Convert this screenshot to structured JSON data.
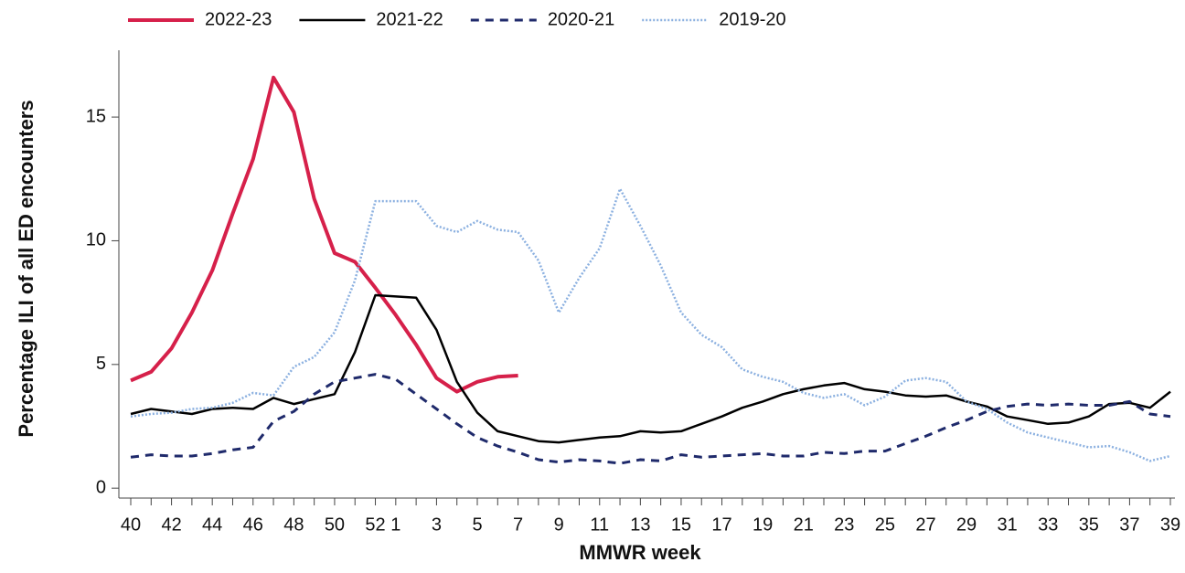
{
  "chart_data": {
    "type": "line",
    "x_label": "MMWR week",
    "y_label": "Percentage ILI of all ED encounters",
    "categories": [
      "40",
      null,
      "42",
      null,
      "44",
      null,
      "46",
      null,
      "48",
      null,
      "50",
      null,
      "52",
      "1",
      null,
      "3",
      null,
      "5",
      null,
      "7",
      null,
      "9",
      null,
      "11",
      null,
      "13",
      null,
      "15",
      null,
      "17",
      null,
      "19",
      null,
      "21",
      null,
      "23",
      null,
      "25",
      null,
      "27",
      null,
      "29",
      null,
      "31",
      null,
      "33",
      null,
      "35",
      null,
      "37",
      null,
      "39"
    ],
    "ylim": [
      -0.4,
      17.7
    ],
    "yticks": [
      0,
      5,
      10,
      15
    ],
    "legend": "top",
    "series": [
      {
        "name": "2022-23",
        "color": "#d6204a",
        "width": 4,
        "dash": "solid",
        "values": [
          4.35,
          4.7,
          5.65,
          7.1,
          8.8,
          11.1,
          13.3,
          16.6,
          15.2,
          11.7,
          9.5,
          9.15,
          8.1,
          7.0,
          5.8,
          4.45,
          3.9,
          4.3,
          4.5,
          4.55,
          null,
          null,
          null,
          null,
          null,
          null,
          null,
          null,
          null,
          null,
          null,
          null,
          null,
          null,
          null,
          null,
          null,
          null,
          null,
          null,
          null,
          null,
          null,
          null,
          null,
          null,
          null,
          null,
          null,
          null,
          null,
          null
        ]
      },
      {
        "name": "2021-22",
        "color": "#000000",
        "width": 2.5,
        "dash": "solid",
        "values": [
          3.0,
          3.2,
          3.1,
          3.0,
          3.2,
          3.25,
          3.2,
          3.65,
          3.4,
          3.6,
          3.8,
          5.5,
          7.8,
          7.75,
          7.7,
          6.4,
          4.3,
          3.05,
          2.3,
          2.1,
          1.9,
          1.85,
          1.95,
          2.05,
          2.1,
          2.3,
          2.25,
          2.3,
          2.6,
          2.9,
          3.25,
          3.5,
          3.8,
          4.0,
          4.15,
          4.25,
          4.0,
          3.9,
          3.75,
          3.7,
          3.75,
          3.5,
          3.3,
          2.9,
          2.75,
          2.6,
          2.65,
          2.9,
          3.4,
          3.45,
          3.25,
          3.9
        ]
      },
      {
        "name": "2020-21",
        "color": "#1f2a6b",
        "width": 3,
        "dash": "dashed",
        "values": [
          1.25,
          1.35,
          1.3,
          1.3,
          1.4,
          1.55,
          1.65,
          2.7,
          3.1,
          3.8,
          4.3,
          4.45,
          4.6,
          4.4,
          3.8,
          3.2,
          2.6,
          2.05,
          1.7,
          1.45,
          1.15,
          1.05,
          1.15,
          1.1,
          1.0,
          1.15,
          1.1,
          1.35,
          1.25,
          1.3,
          1.35,
          1.4,
          1.3,
          1.3,
          1.45,
          1.4,
          1.5,
          1.5,
          1.8,
          2.1,
          2.45,
          2.75,
          3.1,
          3.3,
          3.4,
          3.35,
          3.4,
          3.35,
          3.35,
          3.5,
          3.0,
          2.9
        ]
      },
      {
        "name": "2019-20",
        "color": "#8bb0e0",
        "width": 2.5,
        "dash": "dotted",
        "values": [
          2.9,
          3.0,
          3.05,
          3.2,
          3.25,
          3.45,
          3.85,
          3.75,
          4.9,
          5.3,
          6.3,
          8.4,
          11.6,
          11.6,
          11.6,
          10.6,
          10.35,
          10.8,
          10.45,
          10.35,
          9.2,
          7.1,
          8.5,
          9.7,
          12.1,
          10.6,
          9.0,
          7.1,
          6.2,
          5.7,
          4.8,
          4.5,
          4.3,
          3.85,
          3.65,
          3.8,
          3.35,
          3.7,
          4.35,
          4.45,
          4.3,
          3.5,
          3.2,
          2.65,
          2.25,
          2.05,
          1.85,
          1.65,
          1.7,
          1.45,
          1.1,
          1.3
        ]
      }
    ]
  }
}
